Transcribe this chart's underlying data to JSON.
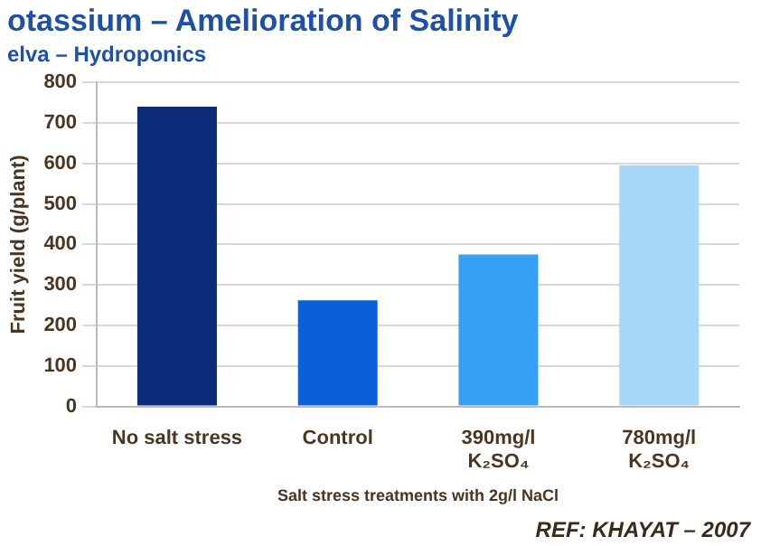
{
  "chart_data": {
    "type": "bar",
    "title": "otassium – Amelioration of Salinity",
    "subtitle": "elva – Hydroponics",
    "categories": [
      "No salt stress",
      "Control",
      "390mg/l\nK₂SO₄",
      "780mg/l\nK₂SO₄"
    ],
    "values": [
      740,
      262,
      375,
      595
    ],
    "colors": [
      "#0b2a78",
      "#0a60d8",
      "#36a0f2",
      "#a6d8fa"
    ],
    "ylabel": "Fruit yield (g/plant)",
    "xlabel": "Salt stress treatments with 2g/l NaCl",
    "ylim": [
      0,
      800
    ],
    "yticks": [
      0,
      100,
      200,
      300,
      400,
      500,
      600,
      700,
      800
    ],
    "grid": "y",
    "legend": false,
    "annotations": [
      "REF:  KHAYAT – 2007"
    ]
  }
}
